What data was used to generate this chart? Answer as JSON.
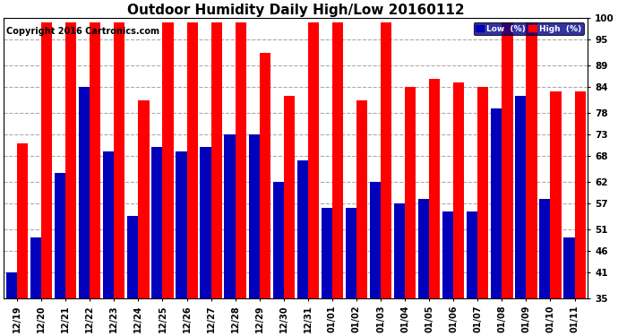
{
  "title": "Outdoor Humidity Daily High/Low 20160112",
  "copyright": "Copyright 2016 Cartronics.com",
  "categories": [
    "12/19",
    "12/20",
    "12/21",
    "12/22",
    "12/23",
    "12/24",
    "12/25",
    "12/26",
    "12/27",
    "12/28",
    "12/29",
    "12/30",
    "12/31",
    "01/01",
    "01/02",
    "01/03",
    "01/04",
    "01/05",
    "01/06",
    "01/07",
    "01/08",
    "01/09",
    "01/10",
    "01/11"
  ],
  "high": [
    71,
    99,
    99,
    99,
    99,
    81,
    99,
    99,
    99,
    99,
    92,
    82,
    99,
    99,
    81,
    99,
    84,
    86,
    85,
    84,
    99,
    99,
    83,
    83
  ],
  "low": [
    41,
    49,
    64,
    84,
    69,
    54,
    70,
    69,
    70,
    73,
    73,
    62,
    67,
    56,
    56,
    62,
    57,
    58,
    55,
    55,
    79,
    82,
    58,
    49
  ],
  "ymin": 35,
  "ylim": [
    35,
    100
  ],
  "yticks": [
    35,
    41,
    46,
    51,
    57,
    62,
    68,
    73,
    78,
    84,
    89,
    95,
    100
  ],
  "bar_color_high": "#ff0000",
  "bar_color_low": "#0000bb",
  "background_color": "#ffffff",
  "grid_color": "#aaaaaa",
  "title_fontsize": 11,
  "copyright_fontsize": 7,
  "legend_high_label": "High  (%)",
  "legend_low_label": "Low  (%)"
}
